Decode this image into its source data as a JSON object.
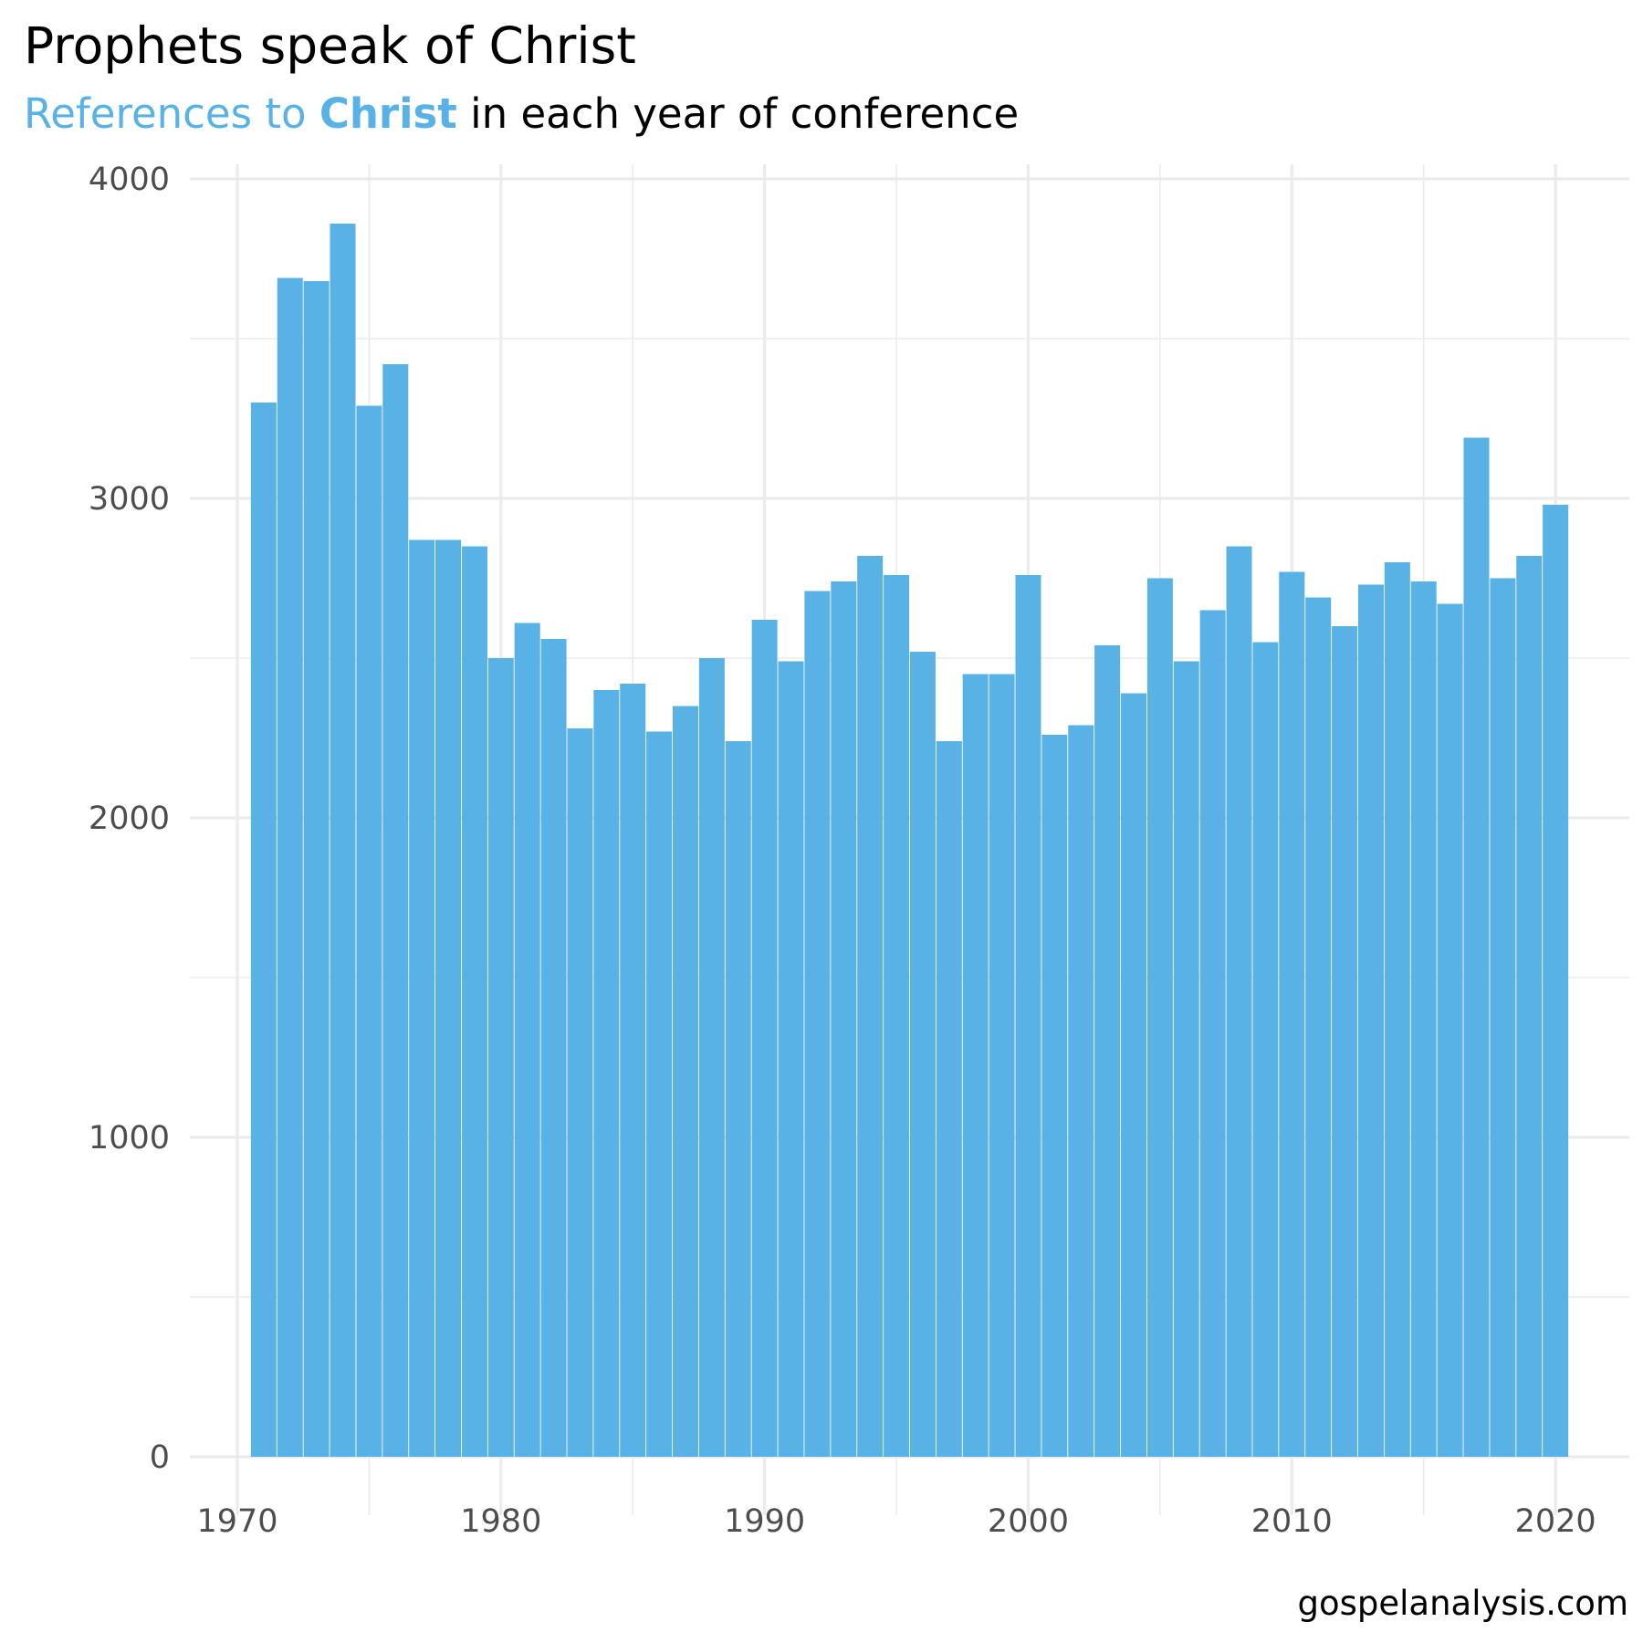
{
  "header": {
    "title": "Prophets speak of Christ",
    "subtitle_part1": "References to ",
    "subtitle_part2": "Christ",
    "subtitle_part3": " in each year of conference"
  },
  "footer": {
    "caption": "gospelanalysis.com"
  },
  "chart_data": {
    "type": "bar",
    "x": [
      1971,
      1972,
      1973,
      1974,
      1975,
      1976,
      1977,
      1978,
      1979,
      1980,
      1981,
      1982,
      1983,
      1984,
      1985,
      1986,
      1987,
      1988,
      1989,
      1990,
      1991,
      1992,
      1993,
      1994,
      1995,
      1996,
      1997,
      1998,
      1999,
      2000,
      2001,
      2002,
      2003,
      2004,
      2005,
      2006,
      2007,
      2008,
      2009,
      2010,
      2011,
      2012,
      2013,
      2014,
      2015,
      2016,
      2017,
      2018,
      2019,
      2020
    ],
    "values": [
      3300,
      3690,
      3680,
      3860,
      3290,
      3420,
      2870,
      2870,
      2850,
      2500,
      2610,
      2560,
      2280,
      2400,
      2420,
      2270,
      2350,
      2500,
      2240,
      2620,
      2490,
      2710,
      2740,
      2820,
      2760,
      2520,
      2240,
      2450,
      2450,
      2760,
      2260,
      2290,
      2540,
      2390,
      2750,
      2490,
      2650,
      2850,
      2550,
      2770,
      2690,
      2600,
      2730,
      2800,
      2740,
      2670,
      3190,
      2750,
      2820,
      2980
    ],
    "ylim": [
      0,
      4000
    ],
    "xlim": [
      1968.2,
      2022.8
    ],
    "yticks": [
      "0",
      "1000",
      "2000",
      "3000",
      "4000"
    ],
    "xticks": [
      "1970",
      "1980",
      "1990",
      "2000",
      "2010",
      "2020"
    ],
    "bar_color": "#58b2e6",
    "grid": true,
    "xlabel": "",
    "ylabel": ""
  }
}
